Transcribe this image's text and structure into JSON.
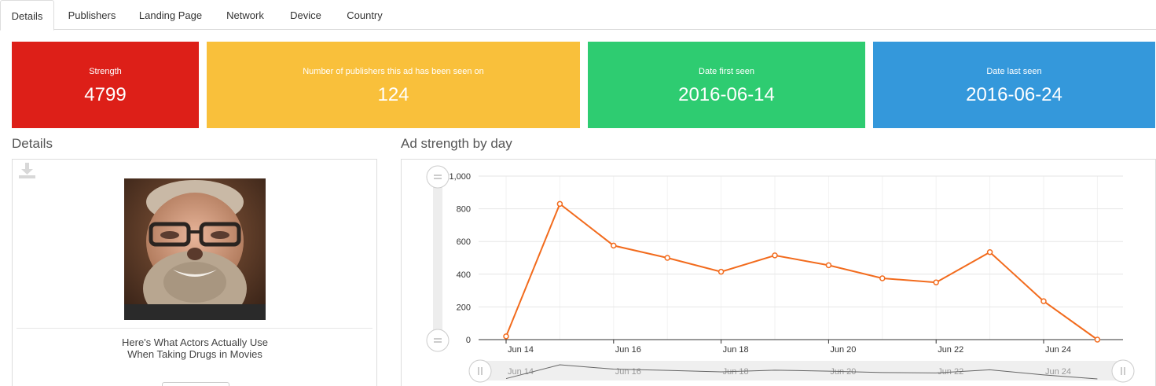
{
  "tabs": [
    {
      "label": "Details",
      "active": true
    },
    {
      "label": "Publishers"
    },
    {
      "label": "Landing Page"
    },
    {
      "label": "Network"
    },
    {
      "label": "Device"
    },
    {
      "label": "Country"
    }
  ],
  "stats": {
    "strength": {
      "label": "Strength",
      "value": "4799",
      "color": "#dd1f18"
    },
    "publishers": {
      "label": "Number of publishers this ad has been seen on",
      "value": "124",
      "color": "#f9c03b"
    },
    "first_seen": {
      "label": "Date first seen",
      "value": "2016-06-14",
      "color": "#2ecc71"
    },
    "last_seen": {
      "label": "Date last seen",
      "value": "2016-06-24",
      "color": "#3498db"
    }
  },
  "details": {
    "heading": "Details",
    "ad_title": "Here's What Actors Actually Use When Taking Drugs in Movies",
    "icons": {
      "download": "download-icon"
    }
  },
  "chart_section": {
    "heading": "Ad strength by day"
  },
  "chart_data": {
    "type": "line",
    "x": [
      "2016-06-14",
      "2016-06-15",
      "2016-06-16",
      "2016-06-17",
      "2016-06-18",
      "2016-06-19",
      "2016-06-20",
      "2016-06-21",
      "2016-06-22",
      "2016-06-23",
      "2016-06-24",
      "2016-06-25"
    ],
    "series": [
      {
        "values": [
          20,
          830,
          575,
          500,
          415,
          515,
          455,
          375,
          350,
          535,
          235,
          0
        ],
        "color": "#f26b1d"
      }
    ],
    "ylim": [
      0,
      1000
    ],
    "y_ticks": [
      "0",
      "200",
      "400",
      "600",
      "800",
      "1,000"
    ],
    "x_tick_labels": [
      "Jun 14",
      "Jun 16",
      "Jun 18",
      "Jun 20",
      "Jun 22",
      "Jun 24"
    ],
    "grid": true,
    "navigator": true
  }
}
